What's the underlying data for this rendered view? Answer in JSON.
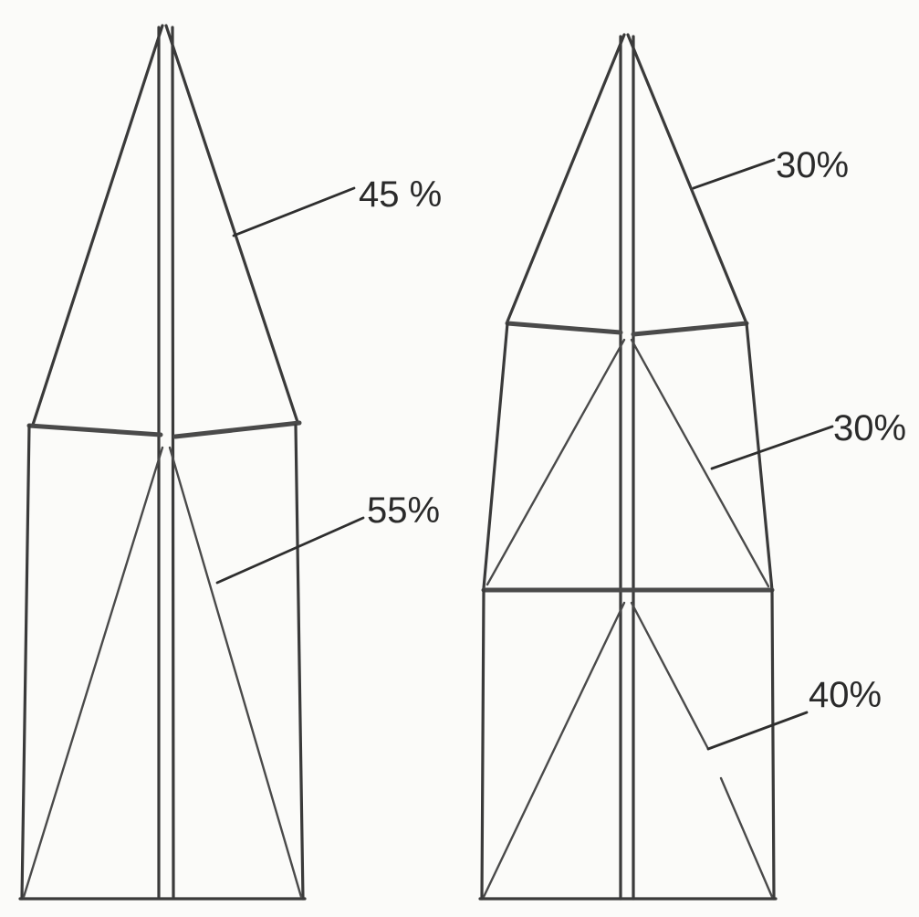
{
  "kites": [
    {
      "id": "left",
      "sections": [
        {
          "label": "45 %"
        },
        {
          "label": "55%"
        }
      ]
    },
    {
      "id": "right",
      "sections": [
        {
          "label": "30%"
        },
        {
          "label": "30%"
        },
        {
          "label": "40%"
        }
      ]
    }
  ],
  "colors": {
    "ink": "#3a3a3a",
    "paper": "#fbfbf9"
  }
}
